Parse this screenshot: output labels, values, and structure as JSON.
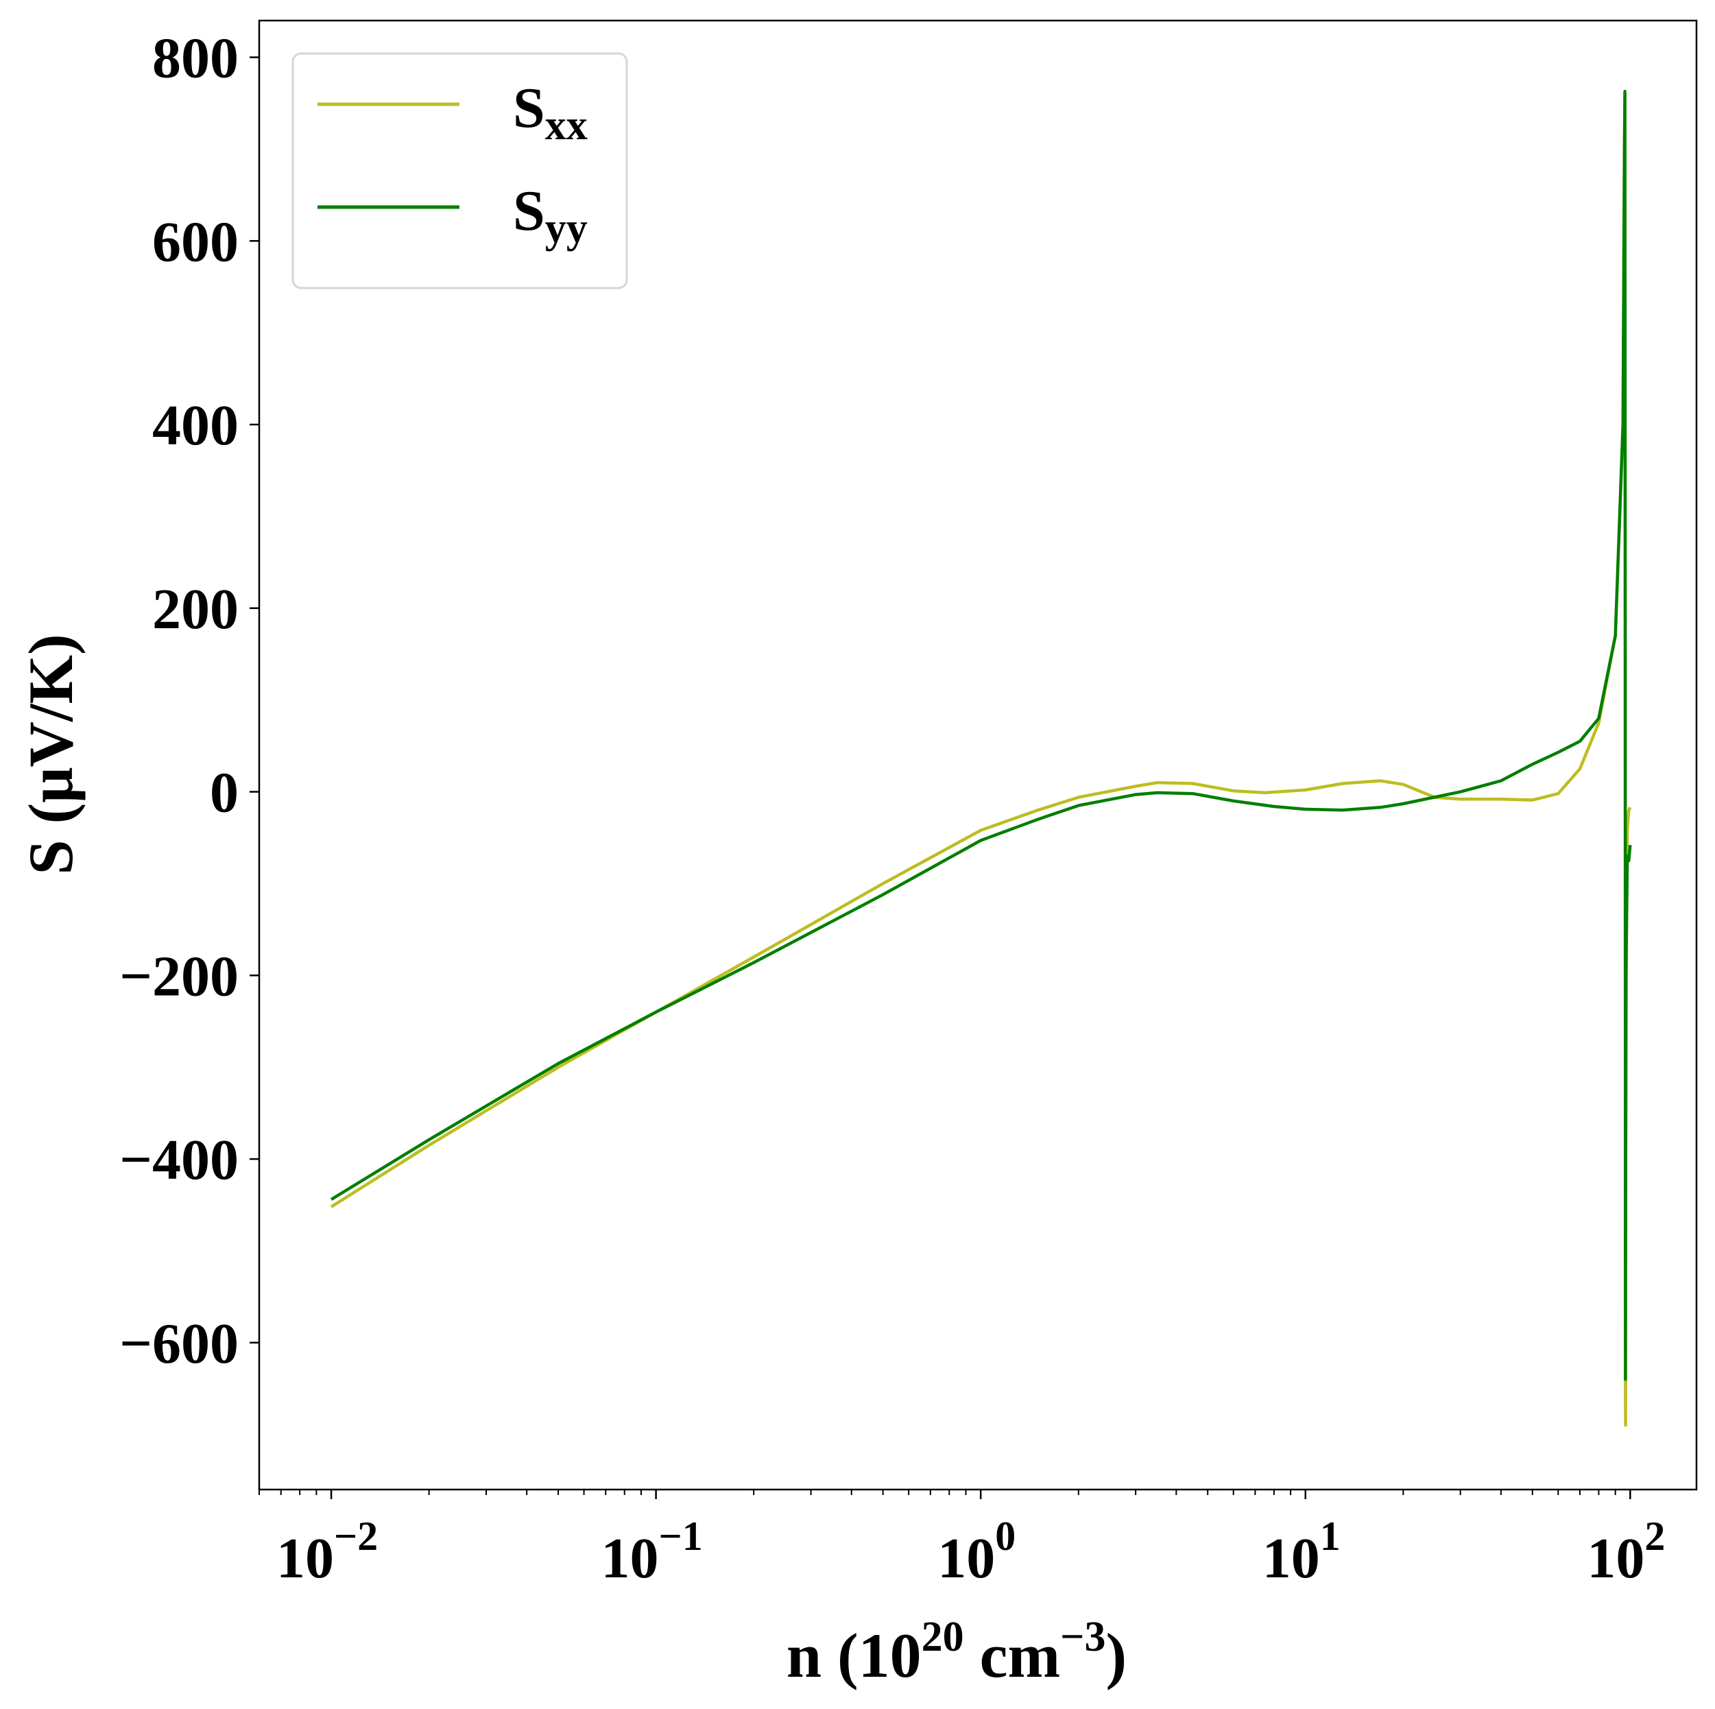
{
  "chart_data": {
    "type": "line",
    "xscale": "log",
    "xlim": [
      0.006,
      160
    ],
    "ylim": [
      -760,
      840
    ],
    "xticks": [
      {
        "value": 0.01,
        "base": "10",
        "exp": "−2"
      },
      {
        "value": 0.1,
        "base": "10",
        "exp": "−1"
      },
      {
        "value": 1,
        "base": "10",
        "exp": "0"
      },
      {
        "value": 10,
        "base": "10",
        "exp": "1"
      },
      {
        "value": 100,
        "base": "10",
        "exp": "2"
      }
    ],
    "yticks": [
      {
        "value": 800,
        "label": "800"
      },
      {
        "value": 600,
        "label": "600"
      },
      {
        "value": 400,
        "label": "400"
      },
      {
        "value": 200,
        "label": "200"
      },
      {
        "value": 0,
        "label": "0"
      },
      {
        "value": -200,
        "label": "−200"
      },
      {
        "value": -400,
        "label": "−400"
      },
      {
        "value": -600,
        "label": "−600"
      }
    ],
    "xlabel": {
      "prefix": "n (10",
      "sup1": "20",
      "mid": " cm",
      "sup2": "−3",
      "suffix": ")"
    },
    "ylabel": "S (μV/K)",
    "grid": false,
    "legend_position": "top-left",
    "series": [
      {
        "name": "S",
        "name_sub": "xx",
        "color": "#bcbd22",
        "points": [
          [
            0.01,
            -452
          ],
          [
            0.02,
            -385
          ],
          [
            0.05,
            -300
          ],
          [
            0.1,
            -240
          ],
          [
            0.2,
            -180
          ],
          [
            0.5,
            -100
          ],
          [
            1,
            -42
          ],
          [
            1.5,
            -20
          ],
          [
            2,
            -6
          ],
          [
            3,
            6
          ],
          [
            3.5,
            10
          ],
          [
            4.5,
            9
          ],
          [
            6,
            1
          ],
          [
            7.5,
            -1
          ],
          [
            10,
            2
          ],
          [
            13,
            9
          ],
          [
            17,
            12
          ],
          [
            20,
            8
          ],
          [
            25,
            -6
          ],
          [
            30,
            -8
          ],
          [
            40,
            -8
          ],
          [
            50,
            -9
          ],
          [
            60,
            -2
          ],
          [
            70,
            25
          ],
          [
            80,
            75
          ],
          [
            90,
            170
          ],
          [
            95,
            400
          ],
          [
            96,
            700
          ],
          [
            96.3,
            760
          ],
          [
            96.5,
            300
          ],
          [
            96.7,
            -650
          ],
          [
            96.8,
            -690
          ],
          [
            96.9,
            -400
          ],
          [
            97.5,
            -120
          ],
          [
            98,
            -40
          ],
          [
            99,
            -20
          ],
          [
            100,
            -17
          ]
        ]
      },
      {
        "name": "S",
        "name_sub": "yy",
        "color": "#007f00",
        "points": [
          [
            0.01,
            -444
          ],
          [
            0.02,
            -379
          ],
          [
            0.05,
            -296
          ],
          [
            0.1,
            -240
          ],
          [
            0.2,
            -186
          ],
          [
            0.5,
            -112
          ],
          [
            1,
            -53
          ],
          [
            1.5,
            -30
          ],
          [
            2,
            -15
          ],
          [
            3,
            -3
          ],
          [
            3.5,
            -1
          ],
          [
            4.5,
            -2
          ],
          [
            6,
            -10
          ],
          [
            8,
            -16
          ],
          [
            10,
            -19
          ],
          [
            13,
            -20
          ],
          [
            17,
            -17
          ],
          [
            20,
            -13
          ],
          [
            30,
            0
          ],
          [
            40,
            12
          ],
          [
            50,
            30
          ],
          [
            60,
            43
          ],
          [
            70,
            55
          ],
          [
            80,
            80
          ],
          [
            90,
            170
          ],
          [
            95,
            400
          ],
          [
            96,
            700
          ],
          [
            96.3,
            763
          ],
          [
            96.5,
            300
          ],
          [
            96.7,
            -640
          ],
          [
            96.8,
            -500
          ],
          [
            97,
            -200
          ],
          [
            98,
            -70
          ],
          [
            99,
            -75
          ],
          [
            100,
            -58
          ]
        ]
      }
    ]
  }
}
